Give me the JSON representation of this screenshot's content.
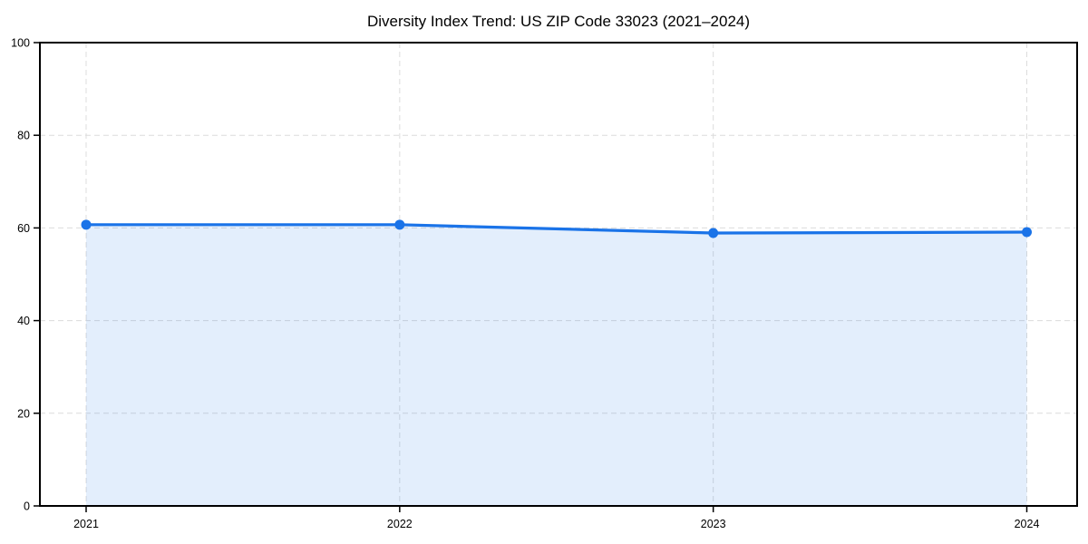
{
  "page": {
    "background": "#ffffff"
  },
  "chart_data": {
    "type": "area",
    "title": "Diversity Index Trend: US ZIP Code 33023 (2021–2024)",
    "categories": [
      "2021",
      "2022",
      "2023",
      "2024"
    ],
    "series": [
      {
        "name": "Diversity Index",
        "values": [
          60.7,
          60.7,
          58.9,
          59.1
        ]
      }
    ],
    "values": [
      60.7,
      60.7,
      58.9,
      59.1
    ],
    "xlabel": "",
    "ylabel": "",
    "ylim": [
      0,
      100
    ],
    "yticks": [
      0,
      20,
      40,
      60,
      80,
      100
    ],
    "grid": "dashed-horizontal-and-vertical",
    "legend": "none",
    "marker": "circle",
    "colors": {
      "line": "#1a73e8",
      "marker": "#1a73e8",
      "fill": "rgba(26,115,232,0.12)",
      "gridline": "#dcdcdc",
      "spine": "#000000",
      "text": "#000000",
      "background": "#ffffff"
    }
  }
}
